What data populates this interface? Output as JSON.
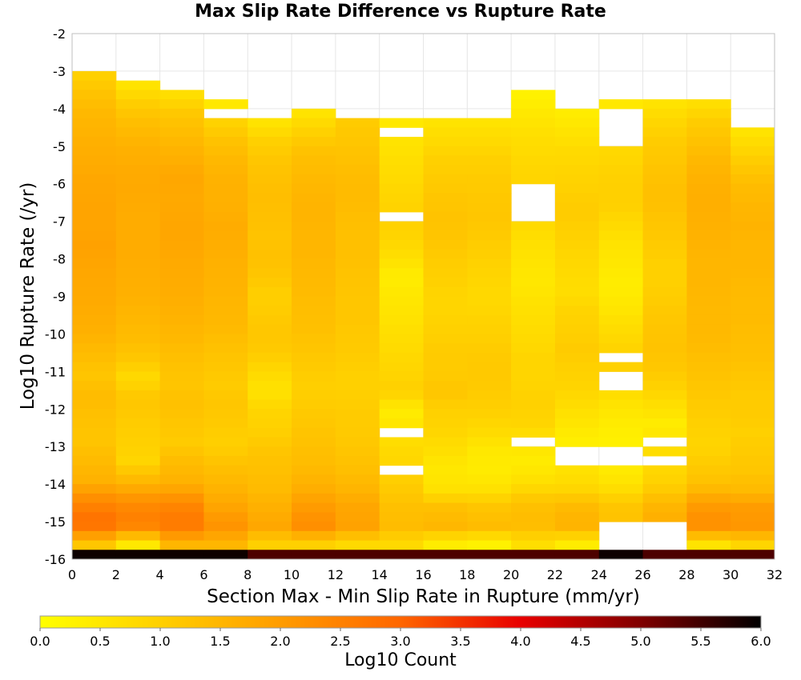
{
  "chart_data": {
    "type": "heatmap",
    "title": "Max Slip Rate Difference vs Rupture Rate",
    "xlabel": "Section Max - Min Slip Rate in Rupture (mm/yr)",
    "ylabel": "Log10 Rupture Rate (/yr)",
    "xlim": [
      0,
      32
    ],
    "ylim": [
      -16,
      -2
    ],
    "x_ticks": [
      "0",
      "2",
      "4",
      "6",
      "8",
      "10",
      "12",
      "14",
      "16",
      "18",
      "20",
      "22",
      "24",
      "26",
      "28",
      "30",
      "32"
    ],
    "y_ticks": [
      "-2",
      "-3",
      "-4",
      "-5",
      "-6",
      "-7",
      "-8",
      "-9",
      "-10",
      "-11",
      "-12",
      "-13",
      "-14",
      "-15",
      "-16"
    ],
    "x_bin_width": 2,
    "y_bin_height": 0.25,
    "colorbar": {
      "label": "Log10 Count",
      "range": [
        0,
        6
      ],
      "ticks": [
        "0.0",
        "0.5",
        "1.0",
        "1.5",
        "2.0",
        "2.5",
        "3.0",
        "3.5",
        "4.0",
        "4.5",
        "5.0",
        "5.5",
        "6.0"
      ],
      "colors": [
        "#ffff00",
        "#ffd000",
        "#ff9c00",
        "#ff6600",
        "#e80000",
        "#800000",
        "#000000"
      ]
    },
    "columns": [
      {
        "x_start": 0,
        "y_top": -3.0,
        "gaps": [],
        "profile": [
          1.0,
          1.3,
          1.5,
          1.6,
          1.7,
          1.8,
          1.85,
          1.85,
          1.9,
          1.8,
          1.75,
          1.7,
          1.6,
          1.4,
          1.2,
          1.4,
          1.3,
          1.2,
          1.4,
          1.6,
          2.4,
          2.9,
          1.2
        ],
        "bottom": 5.9
      },
      {
        "x_start": 2,
        "y_top": -3.25,
        "gaps": [],
        "profile": [
          0.6,
          1.1,
          1.4,
          1.6,
          1.7,
          1.75,
          1.7,
          1.7,
          1.7,
          1.65,
          1.6,
          1.5,
          1.4,
          1.2,
          0.8,
          1.2,
          1.1,
          1.0,
          0.9,
          1.5,
          2.3,
          2.6,
          0.5
        ],
        "bottom": 5.9
      },
      {
        "x_start": 4,
        "y_top": -3.5,
        "gaps": [],
        "profile": [
          0.7,
          1.2,
          1.4,
          1.6,
          1.8,
          1.75,
          1.8,
          1.8,
          1.75,
          1.7,
          1.65,
          1.55,
          1.45,
          1.3,
          1.2,
          1.3,
          1.2,
          1.1,
          1.4,
          1.6,
          2.4,
          2.7,
          1.5
        ],
        "bottom": 5.9
      },
      {
        "x_start": 6,
        "y_top": -3.75,
        "gaps": [
          [
            -4.0,
            -4.25
          ]
        ],
        "profile": [
          0.5,
          1.0,
          1.3,
          1.5,
          1.6,
          1.6,
          1.7,
          1.65,
          1.6,
          1.55,
          1.5,
          1.45,
          1.3,
          1.2,
          1.1,
          1.2,
          1.1,
          1.0,
          1.3,
          1.5,
          1.8,
          2.2,
          1.5
        ],
        "bottom": 5.9
      },
      {
        "x_start": 8,
        "y_top": -4.25,
        "gaps": [],
        "profile": [
          0.6,
          1.0,
          1.2,
          1.3,
          1.35,
          1.3,
          1.25,
          1.3,
          1.2,
          1.0,
          1.1,
          1.2,
          1.1,
          0.8,
          0.6,
          0.9,
          1.0,
          1.2,
          1.3,
          1.4,
          1.6,
          1.8,
          1.0
        ],
        "bottom": 5.4
      },
      {
        "x_start": 10,
        "y_top": -4.0,
        "gaps": [],
        "profile": [
          0.6,
          1.0,
          1.3,
          1.4,
          1.5,
          1.55,
          1.5,
          1.5,
          1.45,
          1.4,
          1.35,
          1.3,
          1.2,
          1.1,
          1.0,
          1.1,
          1.2,
          1.3,
          1.4,
          1.6,
          2.0,
          2.3,
          1.0
        ],
        "bottom": 5.4
      },
      {
        "x_start": 12,
        "y_top": -4.25,
        "gaps": [],
        "profile": [
          1.1,
          1.2,
          1.3,
          1.4,
          1.4,
          1.35,
          1.3,
          1.3,
          1.25,
          1.2,
          1.2,
          1.15,
          1.1,
          1.0,
          1.0,
          1.1,
          1.1,
          1.2,
          1.3,
          1.5,
          1.8,
          1.9,
          0.8
        ],
        "bottom": 5.4
      },
      {
        "x_start": 14,
        "y_top": -4.25,
        "gaps": [
          [
            -4.5,
            -4.75
          ],
          [
            -6.75,
            -7.0
          ],
          [
            -12.5,
            -12.75
          ],
          [
            -13.5,
            -13.75
          ]
        ],
        "profile": [
          0.5,
          0.6,
          0.7,
          0.8,
          0.9,
          1.0,
          0.9,
          0.7,
          0.4,
          0.5,
          0.6,
          0.7,
          0.8,
          0.9,
          1.0,
          0.4,
          0.6,
          0.8,
          0.9,
          1.1,
          1.3,
          1.4,
          0.8
        ],
        "bottom": 5.4
      },
      {
        "x_start": 16,
        "y_top": -4.25,
        "gaps": [],
        "profile": [
          0.6,
          0.8,
          1.0,
          1.1,
          1.2,
          1.25,
          1.2,
          1.1,
          1.0,
          0.9,
          0.9,
          1.0,
          1.1,
          1.1,
          1.2,
          1.0,
          0.9,
          0.7,
          0.5,
          0.6,
          1.3,
          1.5,
          0.4
        ],
        "bottom": 5.4
      },
      {
        "x_start": 18,
        "y_top": -4.25,
        "gaps": [],
        "profile": [
          0.6,
          0.8,
          1.0,
          1.1,
          1.15,
          1.2,
          1.1,
          1.0,
          0.9,
          0.8,
          0.9,
          1.0,
          1.1,
          1.15,
          1.1,
          1.0,
          0.8,
          0.5,
          0.4,
          0.6,
          1.2,
          1.4,
          0.3
        ],
        "bottom": 5.4
      },
      {
        "x_start": 20,
        "y_top": -3.5,
        "gaps": [
          [
            -6.0,
            -7.0
          ],
          [
            -12.75,
            -13.0
          ]
        ],
        "profile": [
          0.3,
          0.5,
          0.7,
          0.8,
          0.9,
          0.9,
          0.85,
          0.7,
          0.6,
          0.5,
          0.6,
          0.7,
          0.8,
          0.9,
          0.9,
          1.0,
          0.9,
          0.6,
          0.4,
          0.7,
          1.3,
          1.4,
          0.7
        ],
        "bottom": 5.4
      },
      {
        "x_start": 22,
        "y_top": -4.0,
        "gaps": [
          [
            -13.0,
            -13.5
          ]
        ],
        "profile": [
          0.4,
          0.6,
          0.8,
          0.9,
          1.0,
          1.1,
          1.0,
          0.9,
          0.8,
          0.7,
          0.9,
          1.0,
          1.1,
          1.0,
          0.9,
          0.7,
          0.5,
          0.3,
          0.6,
          0.8,
          1.4,
          1.6,
          0.4
        ],
        "bottom": 5.4
      },
      {
        "x_start": 24,
        "y_top": -3.75,
        "gaps": [
          [
            -4.0,
            -5.0
          ],
          [
            -10.5,
            -10.75
          ],
          [
            -11.0,
            -11.5
          ],
          [
            -13.0,
            -13.5
          ],
          [
            -15.0,
            -16.0
          ]
        ],
        "profile": [
          0.5,
          0.7,
          0.8,
          0.9,
          1.0,
          1.0,
          0.8,
          0.6,
          0.5,
          0.4,
          0.5,
          0.7,
          0.9,
          1.0,
          0.8,
          0.6,
          0.4,
          0.3,
          0.4,
          0.6,
          1.2,
          1.3,
          0.5
        ],
        "bottom": 5.9
      },
      {
        "x_start": 26,
        "y_top": -3.75,
        "gaps": [
          [
            -12.75,
            -13.0
          ],
          [
            -13.25,
            -13.5
          ],
          [
            -15.0,
            -16.0
          ]
        ],
        "profile": [
          0.6,
          0.9,
          1.1,
          1.2,
          1.3,
          1.3,
          1.2,
          1.1,
          1.0,
          1.0,
          1.1,
          1.2,
          1.25,
          1.2,
          1.0,
          0.7,
          0.4,
          0.7,
          0.8,
          1.0,
          1.5,
          1.7,
          0.6
        ],
        "bottom": 5.4
      },
      {
        "x_start": 28,
        "y_top": -3.75,
        "gaps": [],
        "profile": [
          0.7,
          1.1,
          1.3,
          1.5,
          1.6,
          1.65,
          1.6,
          1.55,
          1.5,
          1.5,
          1.45,
          1.45,
          1.4,
          1.3,
          1.2,
          1.1,
          1.0,
          0.9,
          1.1,
          1.3,
          2.0,
          2.3,
          0.6
        ],
        "bottom": 5.4
      },
      {
        "x_start": 30,
        "y_top": -4.5,
        "gaps": [],
        "profile": [
          0.6,
          0.9,
          1.2,
          1.4,
          1.5,
          1.55,
          1.5,
          1.5,
          1.45,
          1.4,
          1.4,
          1.35,
          1.3,
          1.2,
          1.1,
          1.1,
          1.0,
          1.1,
          1.2,
          1.4,
          2.0,
          2.1,
          0.9
        ],
        "bottom": 5.4
      }
    ]
  }
}
